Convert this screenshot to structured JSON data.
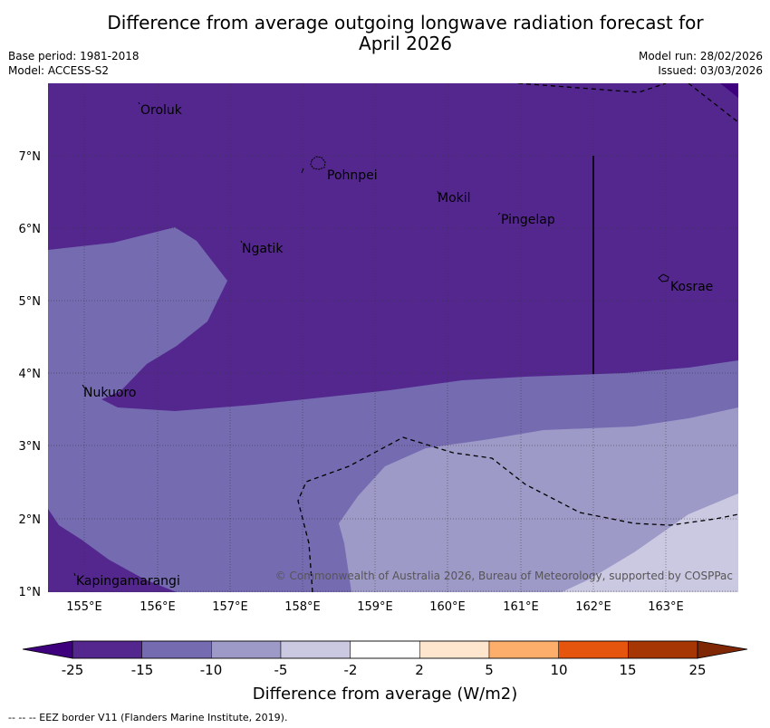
{
  "title": {
    "line1": "Difference from average outgoing longwave radiation forecast for",
    "line2": "April 2026"
  },
  "meta": {
    "base_period": "Base period: 1981-2018",
    "model": "Model: ACCESS-S2",
    "model_run": "Model run: 28/02/2026",
    "issued": "Issued: 03/03/2026"
  },
  "map": {
    "lat_labels": [
      "7°N",
      "6°N",
      "5°N",
      "4°N",
      "3°N",
      "2°N",
      "1°N"
    ],
    "lon_labels": [
      "155°E",
      "156°E",
      "157°E",
      "158°E",
      "159°E",
      "160°E",
      "161°E",
      "162°E",
      "163°E"
    ],
    "places": [
      "Oroluk",
      "Pohnpei",
      "Mokil",
      "Pingelap",
      "Ngatik",
      "Kosrae",
      "Nukuoro",
      "Kapingamarangi"
    ],
    "copyright": "© Commonwealth of Australia 2026, Bureau of Meteorology, supported by COSPPac"
  },
  "legend": {
    "ticks": [
      "-25",
      "-15",
      "-10",
      "-5",
      "-2",
      "2",
      "5",
      "10",
      "15",
      "25"
    ],
    "colors": [
      "#54278f",
      "#756bb1",
      "#9e9ac8",
      "#cbc9e2",
      "#ffffff",
      "#fee6ce",
      "#fdae6b",
      "#e6550d",
      "#a63603"
    ],
    "label": "Difference from average (W/m2)"
  },
  "footer": "--  --  -- EEZ border V11 (Flanders Marine Institute, 2019)."
}
